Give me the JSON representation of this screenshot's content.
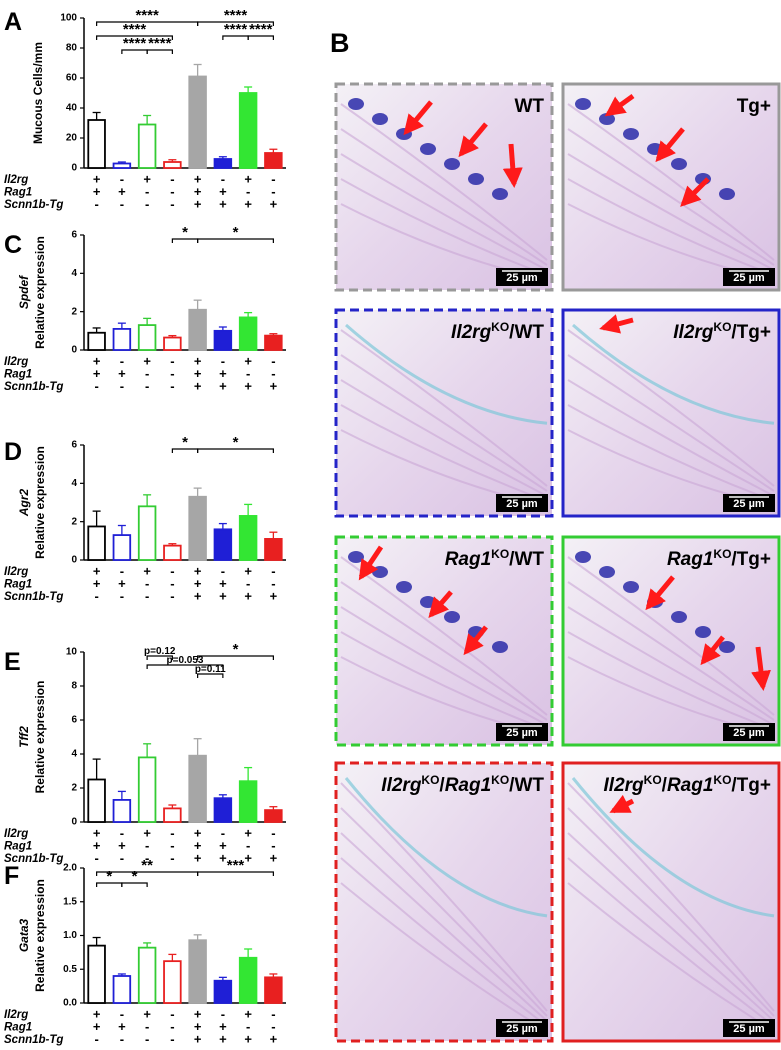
{
  "chart_data": [
    {
      "type": "bar",
      "panel": "A",
      "ylabel": "Mucous Cells/mm",
      "categories": [
        null,
        null,
        null,
        null,
        null,
        null,
        null,
        null
      ],
      "values": [
        32,
        3,
        29,
        4,
        61,
        6,
        50,
        10
      ],
      "errors": [
        5,
        1,
        6,
        1.5,
        8,
        1.5,
        4,
        2.5
      ],
      "bar_fill": [
        "#ffffff",
        "#ffffff",
        "#ffffff",
        "#ffffff",
        "#a6a6a6",
        "#1f1fd6",
        "#33e633",
        "#e82020"
      ],
      "bar_edge": [
        "#000000",
        "#1f1fd6",
        "#33cc33",
        "#e82020",
        "#a6a6a6",
        "#1f1fd6",
        "#33e633",
        "#e82020"
      ],
      "ylim": [
        0,
        100
      ],
      "yticks": [
        0,
        20,
        40,
        60,
        80,
        100
      ],
      "annotations": [
        {
          "text": "****",
          "groups": [
            0,
            4
          ]
        },
        {
          "text": "****",
          "groups": [
            4,
            7
          ]
        },
        {
          "text": "****",
          "groups": [
            0,
            3
          ]
        },
        {
          "text": "****",
          "groups": [
            5,
            6
          ]
        },
        {
          "text": "****",
          "groups": [
            2,
            3
          ]
        },
        {
          "text": "****",
          "groups": [
            6,
            7
          ]
        },
        {
          "text": "****",
          "groups": [
            1,
            2
          ]
        }
      ],
      "genotype": [
        {
          "name": "Il2rg",
          "signs": [
            "+",
            "-",
            "+",
            "-",
            "+",
            "-",
            "+",
            "-"
          ]
        },
        {
          "name": "Rag1",
          "signs": [
            "+",
            "+",
            "-",
            "-",
            "+",
            "+",
            "-",
            "-"
          ]
        },
        {
          "name": "Scnn1b-Tg",
          "signs": [
            "-",
            "-",
            "-",
            "-",
            "+",
            "+",
            "+",
            "+"
          ]
        }
      ]
    },
    {
      "type": "bar",
      "panel": "C",
      "ylabel_gene": "Spdef",
      "ylabel": "Relative expression",
      "categories": [
        null,
        null,
        null,
        null,
        null,
        null,
        null,
        null
      ],
      "values": [
        0.9,
        1.1,
        1.3,
        0.65,
        2.1,
        1.0,
        1.7,
        0.75
      ],
      "errors": [
        0.25,
        0.3,
        0.35,
        0.1,
        0.5,
        0.2,
        0.25,
        0.1
      ],
      "bar_fill": [
        "#ffffff",
        "#ffffff",
        "#ffffff",
        "#ffffff",
        "#a6a6a6",
        "#1f1fd6",
        "#33e633",
        "#e82020"
      ],
      "bar_edge": [
        "#000000",
        "#1f1fd6",
        "#33cc33",
        "#e82020",
        "#a6a6a6",
        "#1f1fd6",
        "#33e633",
        "#e82020"
      ],
      "ylim": [
        0,
        6
      ],
      "yticks": [
        0,
        2,
        4,
        6
      ],
      "annotations": [
        {
          "text": "*",
          "groups": [
            3,
            4
          ]
        },
        {
          "text": "*",
          "groups": [
            4,
            7
          ]
        }
      ],
      "genotype": [
        {
          "name": "Il2rg",
          "signs": [
            "+",
            "-",
            "+",
            "-",
            "+",
            "-",
            "+",
            "-"
          ]
        },
        {
          "name": "Rag1",
          "signs": [
            "+",
            "+",
            "-",
            "-",
            "+",
            "+",
            "-",
            "-"
          ]
        },
        {
          "name": "Scnn1b-Tg",
          "signs": [
            "-",
            "-",
            "-",
            "-",
            "+",
            "+",
            "+",
            "+"
          ]
        }
      ]
    },
    {
      "type": "bar",
      "panel": "D",
      "ylabel_gene": "Agr2",
      "ylabel": "Relative expression",
      "categories": [
        null,
        null,
        null,
        null,
        null,
        null,
        null,
        null
      ],
      "values": [
        1.75,
        1.3,
        2.8,
        0.75,
        3.3,
        1.6,
        2.3,
        1.1
      ],
      "errors": [
        0.8,
        0.5,
        0.6,
        0.1,
        0.45,
        0.3,
        0.6,
        0.35
      ],
      "bar_fill": [
        "#ffffff",
        "#ffffff",
        "#ffffff",
        "#ffffff",
        "#a6a6a6",
        "#1f1fd6",
        "#33e633",
        "#e82020"
      ],
      "bar_edge": [
        "#000000",
        "#1f1fd6",
        "#33cc33",
        "#e82020",
        "#a6a6a6",
        "#1f1fd6",
        "#33e633",
        "#e82020"
      ],
      "ylim": [
        0,
        6
      ],
      "yticks": [
        0,
        2,
        4,
        6
      ],
      "annotations": [
        {
          "text": "*",
          "groups": [
            3,
            4
          ]
        },
        {
          "text": "*",
          "groups": [
            4,
            7
          ]
        }
      ],
      "genotype": [
        {
          "name": "Il2rg",
          "signs": [
            "+",
            "-",
            "+",
            "-",
            "+",
            "-",
            "+",
            "-"
          ]
        },
        {
          "name": "Rag1",
          "signs": [
            "+",
            "+",
            "-",
            "-",
            "+",
            "+",
            "-",
            "-"
          ]
        },
        {
          "name": "Scnn1b-Tg",
          "signs": [
            "-",
            "-",
            "-",
            "-",
            "+",
            "+",
            "+",
            "+"
          ]
        }
      ]
    },
    {
      "type": "bar",
      "panel": "E",
      "ylabel_gene": "Tff2",
      "ylabel": "Relative expression",
      "categories": [
        null,
        null,
        null,
        null,
        null,
        null,
        null,
        null
      ],
      "values": [
        2.5,
        1.3,
        3.8,
        0.8,
        3.9,
        1.4,
        2.4,
        0.7
      ],
      "errors": [
        1.2,
        0.5,
        0.8,
        0.2,
        1.0,
        0.2,
        0.8,
        0.2
      ],
      "bar_fill": [
        "#ffffff",
        "#ffffff",
        "#ffffff",
        "#ffffff",
        "#a6a6a6",
        "#1f1fd6",
        "#33e633",
        "#e82020"
      ],
      "bar_edge": [
        "#000000",
        "#1f1fd6",
        "#33cc33",
        "#e82020",
        "#a6a6a6",
        "#1f1fd6",
        "#33e633",
        "#e82020"
      ],
      "ylim": [
        0,
        10
      ],
      "yticks": [
        0,
        2,
        4,
        6,
        8,
        10
      ],
      "annotations": [
        {
          "text": "*",
          "groups": [
            4,
            7
          ]
        },
        {
          "text": "p=0.053",
          "groups": [
            2,
            5
          ]
        },
        {
          "text": "p=0.11",
          "groups": [
            4,
            5
          ]
        },
        {
          "text": "p=0.12",
          "groups": [
            2,
            3
          ]
        }
      ],
      "genotype": [
        {
          "name": "Il2rg",
          "signs": [
            "+",
            "-",
            "+",
            "-",
            "+",
            "-",
            "+",
            "-"
          ]
        },
        {
          "name": "Rag1",
          "signs": [
            "+",
            "+",
            "-",
            "-",
            "+",
            "+",
            "-",
            "-"
          ]
        },
        {
          "name": "Scnn1b-Tg",
          "signs": [
            "-",
            "-",
            "-",
            "-",
            "+",
            "+",
            "+",
            "+"
          ]
        }
      ]
    },
    {
      "type": "bar",
      "panel": "F",
      "ylabel_gene": "Gata3",
      "ylabel": "Relative expression",
      "categories": [
        null,
        null,
        null,
        null,
        null,
        null,
        null,
        null
      ],
      "values": [
        0.85,
        0.4,
        0.82,
        0.62,
        0.93,
        0.33,
        0.67,
        0.38
      ],
      "errors": [
        0.12,
        0.03,
        0.07,
        0.1,
        0.08,
        0.05,
        0.13,
        0.05
      ],
      "bar_fill": [
        "#ffffff",
        "#ffffff",
        "#ffffff",
        "#ffffff",
        "#a6a6a6",
        "#1f1fd6",
        "#33e633",
        "#e82020"
      ],
      "bar_edge": [
        "#000000",
        "#1f1fd6",
        "#33cc33",
        "#e82020",
        "#a6a6a6",
        "#1f1fd6",
        "#33e633",
        "#e82020"
      ],
      "ylim": [
        0,
        2
      ],
      "yticks": [
        {
          "value": 0,
          "label": "0.0"
        },
        0.5,
        {
          "value": 1,
          "label": "1.0"
        },
        1.5,
        {
          "value": 2,
          "label": "2.0"
        }
      ],
      "annotations": [
        {
          "text": "**",
          "groups": [
            0,
            4
          ]
        },
        {
          "text": "***",
          "groups": [
            4,
            7
          ]
        },
        {
          "text": "*",
          "groups": [
            0,
            1
          ]
        },
        {
          "text": "*",
          "groups": [
            1,
            2
          ]
        }
      ],
      "genotype": [
        {
          "name": "Il2rg",
          "signs": [
            "+",
            "-",
            "+",
            "-",
            "+",
            "-",
            "+",
            "-"
          ]
        },
        {
          "name": "Rag1",
          "signs": [
            "+",
            "+",
            "-",
            "-",
            "+",
            "+",
            "-",
            "-"
          ]
        },
        {
          "name": "Scnn1b-Tg",
          "signs": [
            "-",
            "-",
            "-",
            "-",
            "+",
            "+",
            "+",
            "+"
          ]
        }
      ]
    }
  ],
  "panel_b": {
    "label": "B",
    "images": [
      {
        "title": [
          {
            "text": "WT"
          }
        ],
        "border": "#999999",
        "dashed": true,
        "stained": true,
        "scale_bar": "25 µm"
      },
      {
        "title": [
          {
            "text": "Tg+"
          }
        ],
        "border": "#999999",
        "dashed": false,
        "stained": true,
        "scale_bar": "25 µm"
      },
      {
        "title": [
          {
            "text": "Il2rg",
            "italic": true
          },
          {
            "text": "KO",
            "sup": true
          },
          {
            "text": "/WT"
          }
        ],
        "border": "#2424c8",
        "dashed": true,
        "stained": false,
        "scale_bar": "25 µm"
      },
      {
        "title": [
          {
            "text": "Il2rg",
            "italic": true
          },
          {
            "text": "KO",
            "sup": true
          },
          {
            "text": "/Tg+"
          }
        ],
        "border": "#2424c8",
        "dashed": false,
        "stained": false,
        "scale_bar": "25 µm"
      },
      {
        "title": [
          {
            "text": "Rag1",
            "italic": true
          },
          {
            "text": "KO",
            "sup": true
          },
          {
            "text": "/WT"
          }
        ],
        "border": "#33cc33",
        "dashed": true,
        "stained": true,
        "scale_bar": "25 µm"
      },
      {
        "title": [
          {
            "text": "Rag1",
            "italic": true
          },
          {
            "text": "KO",
            "sup": true
          },
          {
            "text": "/Tg+"
          }
        ],
        "border": "#33cc33",
        "dashed": false,
        "stained": true,
        "scale_bar": "25 µm"
      },
      {
        "title": [
          {
            "text": "Il2rg",
            "italic": true
          },
          {
            "text": "KO",
            "sup": true
          },
          {
            "text": "/"
          },
          {
            "text": "Rag1",
            "italic": true
          },
          {
            "text": "KO",
            "sup": true
          },
          {
            "text": "/WT"
          }
        ],
        "border": "#e02020",
        "dashed": true,
        "stained": false,
        "scale_bar": "25 µm"
      },
      {
        "title": [
          {
            "text": "Il2rg",
            "italic": true
          },
          {
            "text": "KO",
            "sup": true
          },
          {
            "text": "/"
          },
          {
            "text": "Rag1",
            "italic": true
          },
          {
            "text": "KO",
            "sup": true
          },
          {
            "text": "/Tg+"
          }
        ],
        "border": "#e02020",
        "dashed": false,
        "stained": false,
        "scale_bar": "25 µm"
      }
    ]
  }
}
